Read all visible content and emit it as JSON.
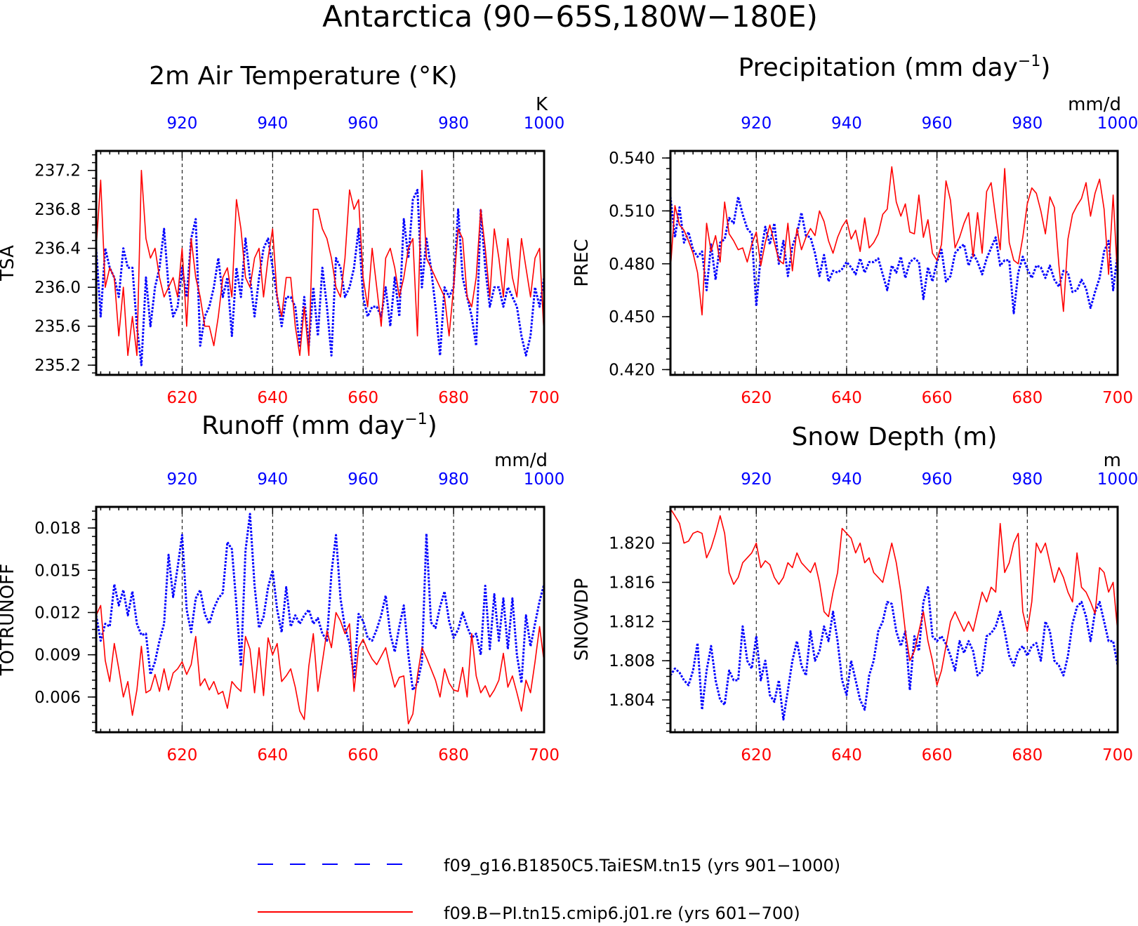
{
  "figure": {
    "title": "Antarctica (90−65S,180W−180E)",
    "colors": {
      "series_a": "#0000ff",
      "series_b": "#ff0000",
      "axis": "#000000"
    }
  },
  "legend": {
    "items": [
      {
        "label": "f09_g16.B1850C5.TaiESM.tn15 (yrs 901−1000)",
        "color": "#0000ff",
        "style": "dashed"
      },
      {
        "label": "f09.B−PI.tn15.cmip6.j01.re (yrs 601−700)",
        "color": "#ff0000",
        "style": "solid"
      }
    ]
  },
  "chart_data": [
    {
      "type": "line",
      "title": "2m Air Temperature (°K)",
      "units": "K",
      "ylabel": "TSA",
      "bottom_ticks": [
        "620",
        "640",
        "660",
        "680",
        "700"
      ],
      "top_ticks": [
        "920",
        "940",
        "960",
        "980",
        "1000"
      ],
      "xlim": [
        601,
        700
      ],
      "ylim": [
        235.1,
        237.4
      ],
      "yticks": [
        235.2,
        235.6,
        236.0,
        236.4,
        236.8,
        237.2
      ],
      "ytick_labels": [
        "235.2",
        "235.6",
        "236.0",
        "236.4",
        "236.8",
        "237.2"
      ],
      "grid": "vertical dashed",
      "series": [
        {
          "color": "#0000ff",
          "style": "dashed",
          "values": [
            236.4,
            235.7,
            236.4,
            236.2,
            236.1,
            235.9,
            236.4,
            236.2,
            236.2,
            235.6,
            235.2,
            236.1,
            235.6,
            236.0,
            236.2,
            236.6,
            236.0,
            235.7,
            235.8,
            236.2,
            235.9,
            236.5,
            236.7,
            235.4,
            235.7,
            235.8,
            236.0,
            236.3,
            235.9,
            236.1,
            235.5,
            236.2,
            235.9,
            236.5,
            236.1,
            235.7,
            236.1,
            236.4,
            236.5,
            236.2,
            235.9,
            235.6,
            235.9,
            235.9,
            235.8,
            235.4,
            235.9,
            235.4,
            236.0,
            235.5,
            236.2,
            235.8,
            235.3,
            236.3,
            236.2,
            235.9,
            236.0,
            236.2,
            236.6,
            235.9,
            235.7,
            235.8,
            235.8,
            235.7,
            236.0,
            235.6,
            236.1,
            235.7,
            236.7,
            236.3,
            236.9,
            237.0,
            236.0,
            236.5,
            236.2,
            235.8,
            235.3,
            236.0,
            235.9,
            236.0,
            236.8,
            236.1,
            235.9,
            235.7,
            235.4,
            236.8,
            236.2,
            235.8,
            236.0,
            236.0,
            235.8,
            236.0,
            235.9,
            235.8,
            235.5,
            235.3,
            235.5,
            236.0,
            235.8,
            236.1
          ]
        },
        {
          "color": "#ff0000",
          "style": "solid",
          "values": [
            236.4,
            237.1,
            236.0,
            236.2,
            236.1,
            235.5,
            236.0,
            235.3,
            235.7,
            235.3,
            237.2,
            236.5,
            236.3,
            236.4,
            236.1,
            235.9,
            236.0,
            236.1,
            235.9,
            236.4,
            235.6,
            236.5,
            236.1,
            235.9,
            235.6,
            235.6,
            235.4,
            235.7,
            236.1,
            236.2,
            235.9,
            236.9,
            236.6,
            236.1,
            236.0,
            236.3,
            236.4,
            235.9,
            236.3,
            236.6,
            235.9,
            235.7,
            236.1,
            236.1,
            235.6,
            235.3,
            235.8,
            235.3,
            236.8,
            236.8,
            236.6,
            236.5,
            236.3,
            236.0,
            235.9,
            236.3,
            237.0,
            236.8,
            236.9,
            236.1,
            235.8,
            236.4,
            236.0,
            235.6,
            236.3,
            236.4,
            236.2,
            235.9,
            236.1,
            236.4,
            236.5,
            235.5,
            237.2,
            236.3,
            236.2,
            236.1,
            236.0,
            235.9,
            235.5,
            236.0,
            236.6,
            236.5,
            235.9,
            235.8,
            236.1,
            236.8,
            236.4,
            235.9,
            236.6,
            236.3,
            235.9,
            236.5,
            236.1,
            235.9,
            236.5,
            236.2,
            235.9,
            236.3,
            236.4,
            235.5
          ]
        }
      ]
    },
    {
      "type": "line",
      "title": "Precipitation (mm day",
      "title_sup": "−1",
      "title_end": ")",
      "units": "mm/d",
      "ylabel": "PREC",
      "bottom_ticks": [
        "620",
        "640",
        "660",
        "680",
        "700"
      ],
      "top_ticks": [
        "920",
        "940",
        "960",
        "980",
        "1000"
      ],
      "xlim": [
        601,
        700
      ],
      "ylim": [
        0.417,
        0.544
      ],
      "yticks": [
        0.42,
        0.45,
        0.48,
        0.51,
        0.54
      ],
      "ytick_labels": [
        "0.420",
        "0.450",
        "0.480",
        "0.510",
        "0.540"
      ],
      "grid": "vertical dashed",
      "series": [
        {
          "color": "#0000ff",
          "style": "dashed",
          "values": [
            0.518,
            0.495,
            0.512,
            0.492,
            0.498,
            0.488,
            0.484,
            0.487,
            0.465,
            0.491,
            0.471,
            0.492,
            0.494,
            0.506,
            0.503,
            0.518,
            0.508,
            0.5,
            0.497,
            0.456,
            0.485,
            0.501,
            0.491,
            0.503,
            0.48,
            0.493,
            0.473,
            0.49,
            0.497,
            0.509,
            0.496,
            0.495,
            0.486,
            0.473,
            0.485,
            0.47,
            0.476,
            0.475,
            0.477,
            0.481,
            0.478,
            0.474,
            0.483,
            0.475,
            0.481,
            0.481,
            0.483,
            0.474,
            0.465,
            0.479,
            0.475,
            0.484,
            0.472,
            0.481,
            0.483,
            0.481,
            0.46,
            0.478,
            0.47,
            0.481,
            0.488,
            0.47,
            0.473,
            0.486,
            0.489,
            0.491,
            0.479,
            0.486,
            0.481,
            0.474,
            0.483,
            0.489,
            0.495,
            0.479,
            0.482,
            0.482,
            0.452,
            0.475,
            0.484,
            0.477,
            0.472,
            0.479,
            0.478,
            0.472,
            0.479,
            0.471,
            0.467,
            0.476,
            0.475,
            0.464,
            0.465,
            0.471,
            0.466,
            0.455,
            0.464,
            0.472,
            0.487,
            0.493,
            0.465,
            0.486
          ]
        },
        {
          "color": "#ff0000",
          "style": "solid",
          "values": [
            0.477,
            0.513,
            0.502,
            0.499,
            0.493,
            0.486,
            0.475,
            0.451,
            0.503,
            0.487,
            0.496,
            0.481,
            0.515,
            0.497,
            0.493,
            0.488,
            0.489,
            0.481,
            0.491,
            0.498,
            0.479,
            0.492,
            0.502,
            0.492,
            0.482,
            0.48,
            0.503,
            0.476,
            0.5,
            0.488,
            0.495,
            0.5,
            0.496,
            0.51,
            0.504,
            0.493,
            0.486,
            0.495,
            0.501,
            0.505,
            0.494,
            0.499,
            0.487,
            0.506,
            0.489,
            0.492,
            0.497,
            0.508,
            0.511,
            0.535,
            0.515,
            0.507,
            0.514,
            0.498,
            0.497,
            0.519,
            0.495,
            0.505,
            0.486,
            0.482,
            0.491,
            0.527,
            0.516,
            0.489,
            0.495,
            0.503,
            0.509,
            0.484,
            0.509,
            0.486,
            0.521,
            0.526,
            0.506,
            0.488,
            0.534,
            0.492,
            0.482,
            0.48,
            0.495,
            0.514,
            0.523,
            0.52,
            0.51,
            0.497,
            0.518,
            0.512,
            0.479,
            0.453,
            0.494,
            0.508,
            0.513,
            0.517,
            0.526,
            0.507,
            0.52,
            0.528,
            0.511,
            0.474,
            0.519,
            0.471
          ]
        }
      ]
    },
    {
      "type": "line",
      "title": "Runoff (mm day",
      "title_sup": "−1",
      "title_end": ")",
      "units": "mm/d",
      "ylabel": "TOTRUNOFF",
      "bottom_ticks": [
        "620",
        "640",
        "660",
        "680",
        "700"
      ],
      "top_ticks": [
        "920",
        "940",
        "960",
        "980",
        "1000"
      ],
      "xlim": [
        601,
        700
      ],
      "ylim": [
        0.0035,
        0.0195
      ],
      "yticks": [
        0.006,
        0.009,
        0.012,
        0.015,
        0.018
      ],
      "ytick_labels": [
        "0.006",
        "0.009",
        "0.012",
        "0.015",
        "0.018"
      ],
      "grid": "vertical dashed",
      "series": [
        {
          "color": "#0000ff",
          "style": "dashed",
          "values": [
            0.0118,
            0.01,
            0.0112,
            0.011,
            0.014,
            0.0125,
            0.0136,
            0.0118,
            0.0135,
            0.0112,
            0.0104,
            0.0105,
            0.0076,
            0.0085,
            0.01,
            0.0112,
            0.0161,
            0.0131,
            0.0152,
            0.0175,
            0.0122,
            0.0106,
            0.013,
            0.0136,
            0.0119,
            0.0112,
            0.0123,
            0.013,
            0.0134,
            0.017,
            0.0165,
            0.0125,
            0.0082,
            0.0164,
            0.019,
            0.0139,
            0.0109,
            0.0117,
            0.0138,
            0.015,
            0.0122,
            0.0106,
            0.0138,
            0.011,
            0.0118,
            0.0112,
            0.0118,
            0.0122,
            0.0112,
            0.0116,
            0.0105,
            0.01,
            0.0148,
            0.0175,
            0.013,
            0.0109,
            0.0098,
            0.0074,
            0.0119,
            0.0114,
            0.0102,
            0.01,
            0.0108,
            0.0118,
            0.0132,
            0.0105,
            0.0092,
            0.011,
            0.0125,
            0.009,
            0.0065,
            0.007,
            0.0085,
            0.0176,
            0.0113,
            0.0109,
            0.0124,
            0.0135,
            0.0114,
            0.0102,
            0.0108,
            0.012,
            0.011,
            0.0102,
            0.0105,
            0.009,
            0.0139,
            0.0094,
            0.0133,
            0.01,
            0.013,
            0.0094,
            0.013,
            0.009,
            0.007,
            0.0118,
            0.0096,
            0.0112,
            0.0128,
            0.014
          ]
        },
        {
          "color": "#ff0000",
          "style": "solid",
          "values": [
            0.0118,
            0.0125,
            0.0086,
            0.0071,
            0.0098,
            0.008,
            0.006,
            0.0071,
            0.0047,
            0.0065,
            0.0096,
            0.0063,
            0.0065,
            0.0076,
            0.0064,
            0.008,
            0.0065,
            0.0077,
            0.008,
            0.0085,
            0.0076,
            0.0083,
            0.0103,
            0.0068,
            0.0073,
            0.0065,
            0.0071,
            0.0062,
            0.0064,
            0.0052,
            0.0071,
            0.0067,
            0.0064,
            0.0103,
            0.0094,
            0.0063,
            0.0095,
            0.0061,
            0.0102,
            0.009,
            0.0098,
            0.0071,
            0.0075,
            0.008,
            0.0067,
            0.005,
            0.0044,
            0.0082,
            0.0105,
            0.0064,
            0.0085,
            0.0107,
            0.0095,
            0.012,
            0.0114,
            0.0105,
            0.0112,
            0.0064,
            0.0095,
            0.0101,
            0.0093,
            0.0087,
            0.0083,
            0.0089,
            0.0095,
            0.008,
            0.0067,
            0.0074,
            0.0075,
            0.0041,
            0.0048,
            0.0075,
            0.0095,
            0.0088,
            0.008,
            0.0072,
            0.006,
            0.008,
            0.007,
            0.0065,
            0.0064,
            0.0081,
            0.006,
            0.0105,
            0.0075,
            0.0063,
            0.0068,
            0.006,
            0.0065,
            0.0072,
            0.0091,
            0.0067,
            0.0075,
            0.0063,
            0.005,
            0.0072,
            0.0063,
            0.0085,
            0.011,
            0.0085
          ]
        }
      ]
    },
    {
      "type": "line",
      "title": "Snow Depth (m)",
      "units": "m",
      "ylabel": "SNOWDP",
      "bottom_ticks": [
        "620",
        "640",
        "660",
        "680",
        "700"
      ],
      "top_ticks": [
        "920",
        "940",
        "960",
        "980",
        "1000"
      ],
      "xlim": [
        601,
        700
      ],
      "ylim": [
        1.8007,
        1.8237
      ],
      "yticks": [
        1.804,
        1.808,
        1.812,
        1.816,
        1.82
      ],
      "ytick_labels": [
        "1.804",
        "1.808",
        "1.812",
        "1.816",
        "1.820"
      ],
      "grid": "vertical dashed",
      "series": [
        {
          "color": "#0000ff",
          "style": "dashed",
          "values": [
            1.8065,
            1.8072,
            1.8068,
            1.806,
            1.8055,
            1.807,
            1.8098,
            1.803,
            1.807,
            1.8095,
            1.806,
            1.804,
            1.8035,
            1.807,
            1.806,
            1.806,
            1.8115,
            1.808,
            1.8072,
            1.8105,
            1.806,
            1.808,
            1.8045,
            1.8038,
            1.806,
            1.802,
            1.805,
            1.808,
            1.81,
            1.8075,
            1.8065,
            1.811,
            1.808,
            1.809,
            1.8115,
            1.81,
            1.813,
            1.81,
            1.806,
            1.8045,
            1.808,
            1.806,
            1.804,
            1.803,
            1.8065,
            1.808,
            1.811,
            1.812,
            1.814,
            1.8138,
            1.811,
            1.8095,
            1.811,
            1.805,
            1.8105,
            1.809,
            1.814,
            1.8155,
            1.8105,
            1.81,
            1.8105,
            1.8097,
            1.8085,
            1.807,
            1.81,
            1.8088,
            1.81,
            1.809,
            1.8065,
            1.807,
            1.8105,
            1.8108,
            1.8115,
            1.813,
            1.811,
            1.8085,
            1.8075,
            1.809,
            1.8095,
            1.8085,
            1.8095,
            1.8098,
            1.808,
            1.812,
            1.811,
            1.808,
            1.8075,
            1.8065,
            1.8085,
            1.8118,
            1.8135,
            1.814,
            1.8125,
            1.81,
            1.813,
            1.814,
            1.812,
            1.81,
            1.81,
            1.8075
          ]
        },
        {
          "color": "#ff0000",
          "style": "solid",
          "values": [
            1.8235,
            1.8228,
            1.822,
            1.82,
            1.8202,
            1.821,
            1.8212,
            1.821,
            1.8185,
            1.8195,
            1.821,
            1.8228,
            1.821,
            1.817,
            1.8158,
            1.8165,
            1.818,
            1.8185,
            1.819,
            1.82,
            1.8175,
            1.8182,
            1.8178,
            1.8165,
            1.8158,
            1.8165,
            1.818,
            1.8175,
            1.819,
            1.818,
            1.8175,
            1.817,
            1.818,
            1.816,
            1.813,
            1.8125,
            1.815,
            1.817,
            1.8215,
            1.821,
            1.8205,
            1.819,
            1.82,
            1.818,
            1.8185,
            1.817,
            1.8165,
            1.816,
            1.818,
            1.82,
            1.818,
            1.815,
            1.811,
            1.808,
            1.809,
            1.811,
            1.813,
            1.81,
            1.808,
            1.8055,
            1.807,
            1.8095,
            1.812,
            1.813,
            1.812,
            1.811,
            1.812,
            1.811,
            1.813,
            1.815,
            1.814,
            1.8155,
            1.815,
            1.822,
            1.817,
            1.818,
            1.82,
            1.821,
            1.813,
            1.811,
            1.814,
            1.82,
            1.819,
            1.82,
            1.818,
            1.816,
            1.8175,
            1.8165,
            1.815,
            1.814,
            1.819,
            1.8155,
            1.815,
            1.814,
            1.8128,
            1.8175,
            1.817,
            1.815,
            1.816,
            1.811
          ]
        }
      ]
    }
  ]
}
